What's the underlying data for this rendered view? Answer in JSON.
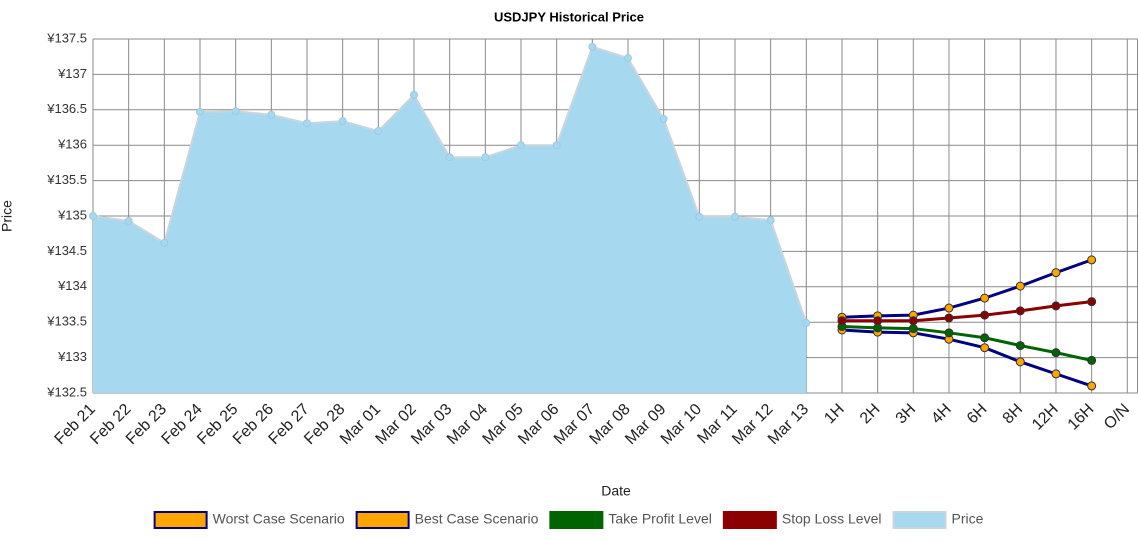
{
  "chart_data": {
    "type": "line",
    "title": "USDJPY  Historical Price",
    "x_label": "Date",
    "y_label": "Price",
    "categories": [
      "Feb 21",
      "Feb 22",
      "Feb 23",
      "Feb 24",
      "Feb 25",
      "Feb 26",
      "Feb 27",
      "Feb 28",
      "Mar 01",
      "Mar 02",
      "Mar 03",
      "Mar 04",
      "Mar 05",
      "Mar 06",
      "Mar 07",
      "Mar 08",
      "Mar 09",
      "Mar 10",
      "Mar 11",
      "Mar 12",
      "Mar 13",
      "1H",
      "2H",
      "3H",
      "4H",
      "6H",
      "8H",
      "12H",
      "16H",
      "O/N"
    ],
    "ylim": [
      132.5,
      137.5
    ],
    "yticks": [
      {
        "value": 132.5,
        "label": "¥132.5"
      },
      {
        "value": 133,
        "label": "¥133"
      },
      {
        "value": 133.5,
        "label": "¥133.5"
      },
      {
        "value": 134,
        "label": "¥134"
      },
      {
        "value": 134.5,
        "label": "¥134.5"
      },
      {
        "value": 135,
        "label": "¥135"
      },
      {
        "value": 135.5,
        "label": "¥135.5"
      },
      {
        "value": 136,
        "label": "¥136"
      },
      {
        "value": 136.5,
        "label": "¥136.5"
      },
      {
        "value": 137,
        "label": "¥137"
      },
      {
        "value": 137.5,
        "label": "¥137.5"
      }
    ],
    "grid": true,
    "legend": "bottom",
    "series": [
      {
        "name": "Worst Case Scenario",
        "color": "#000080",
        "marker_color": "#ffa500",
        "values": [
          null,
          null,
          null,
          null,
          null,
          null,
          null,
          null,
          null,
          null,
          null,
          null,
          null,
          null,
          null,
          null,
          null,
          null,
          null,
          null,
          null,
          133.39,
          133.36,
          133.35,
          133.26,
          133.14,
          132.94,
          132.77,
          132.6,
          null
        ]
      },
      {
        "name": "Best Case Scenario",
        "color": "#000080",
        "marker_color": "#ffa500",
        "values": [
          null,
          null,
          null,
          null,
          null,
          null,
          null,
          null,
          null,
          null,
          null,
          null,
          null,
          null,
          null,
          null,
          null,
          null,
          null,
          null,
          null,
          133.57,
          133.59,
          133.6,
          133.7,
          133.84,
          134.01,
          134.2,
          134.38,
          null
        ]
      },
      {
        "name": "Take Profit Level",
        "color": "#006400",
        "marker_color": "#006400",
        "values": [
          null,
          null,
          null,
          null,
          null,
          null,
          null,
          null,
          null,
          null,
          null,
          null,
          null,
          null,
          null,
          null,
          null,
          null,
          null,
          null,
          null,
          133.44,
          133.42,
          133.41,
          133.35,
          133.28,
          133.17,
          133.07,
          132.96,
          null
        ]
      },
      {
        "name": "Stop Loss Level",
        "color": "#8b0000",
        "marker_color": "#8b0000",
        "values": [
          null,
          null,
          null,
          null,
          null,
          null,
          null,
          null,
          null,
          null,
          null,
          null,
          null,
          null,
          null,
          null,
          null,
          null,
          null,
          null,
          null,
          133.52,
          133.52,
          133.52,
          133.56,
          133.6,
          133.66,
          133.73,
          133.79,
          null
        ]
      },
      {
        "name": "Price",
        "color": "#a6d8f0",
        "area": true,
        "values": [
          135.0,
          134.93,
          134.62,
          136.47,
          136.48,
          136.43,
          136.31,
          136.34,
          136.2,
          136.71,
          135.83,
          135.83,
          136.0,
          136.0,
          137.39,
          137.23,
          136.37,
          134.99,
          134.99,
          134.94,
          133.49,
          null,
          null,
          null,
          null,
          null,
          null,
          null,
          null,
          null
        ]
      }
    ]
  }
}
